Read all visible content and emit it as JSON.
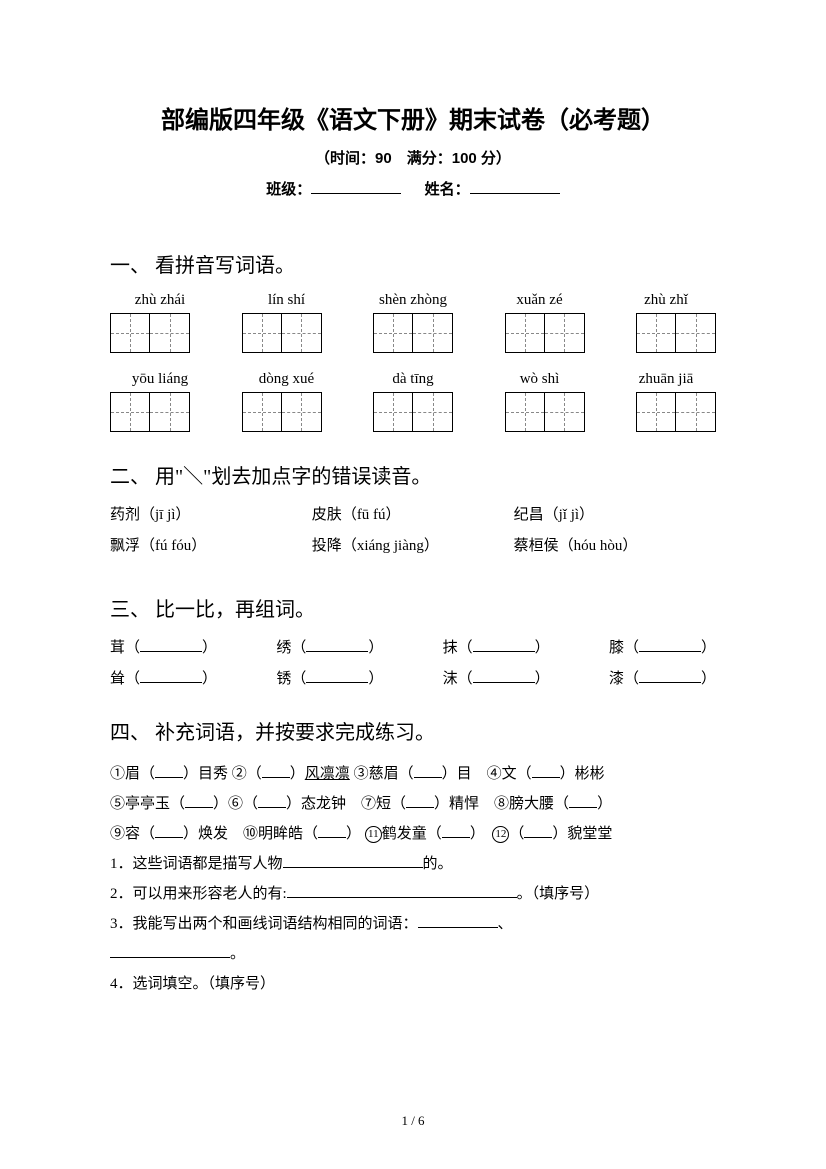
{
  "header": {
    "title": "部编版四年级《语文下册》期末试卷（必考题）",
    "subtitle": "（时间：90　满分：100 分）",
    "class_label": "班级：",
    "name_label": "姓名："
  },
  "section1": {
    "heading": "一、 看拼音写词语。",
    "row1": [
      "zhù zhái",
      "lín shí",
      "shèn zhòng",
      "xuǎn zé",
      "zhù zhǐ"
    ],
    "row2": [
      "yōu liáng",
      "dòng xué",
      "dà tīng",
      "wò shì",
      "zhuān jiā"
    ]
  },
  "section2": {
    "heading": "二、 用\"＼\"划去加点字的错误读音。",
    "items": [
      {
        "zh": "药剂",
        "py": "（jī jì）"
      },
      {
        "zh": "皮肤",
        "py": "（fū fú）"
      },
      {
        "zh": "纪昌",
        "py": "（jǐ jì）"
      },
      {
        "zh": "飘浮",
        "py": "（fú fóu）"
      },
      {
        "zh": "投降",
        "py": "（xiáng jiàng）"
      },
      {
        "zh": "蔡桓侯",
        "py": "（hóu hòu）"
      }
    ]
  },
  "section3": {
    "heading": "三、 比一比，再组词。",
    "row1": [
      "茸",
      "绣",
      "抹",
      "膝"
    ],
    "row2": [
      "耸",
      "锈",
      "沫",
      "漆"
    ]
  },
  "section4": {
    "heading": "四、 补充词语，并按要求完成练习。",
    "line1_parts": {
      "p1a": "①眉（",
      "p1b": "）目秀 ②（",
      "p2": "）",
      "p2u": "风凛凛",
      "p3": " ③慈眉（",
      "p4": "）目　④文（",
      "p5": "）彬彬"
    },
    "line2_parts": {
      "a": "⑤亭亭玉（",
      "b": "）⑥（",
      "c": "）态龙钟　⑦短（",
      "d": "）精悍　⑧膀大腰（",
      "e": "）"
    },
    "line3_parts": {
      "a": "⑨容（",
      "b": "）焕发　⑩明眸皓（",
      "c": "）",
      "d": "鹤发童（",
      "e": "）　",
      "f": "（",
      "g": "）貌堂堂"
    },
    "q1": "1．这些词语都是描写人物",
    "q1_tail": "的。",
    "q2": "2．可以用来形容老人的有:",
    "q2_tail": "。（填序号）",
    "q3": "3．我能写出两个和画线词语结构相同的词语：",
    "q3_sep": "、",
    "q3_end": "。",
    "q4": "4．选词填空。（填序号）"
  },
  "footer": "1 / 6"
}
